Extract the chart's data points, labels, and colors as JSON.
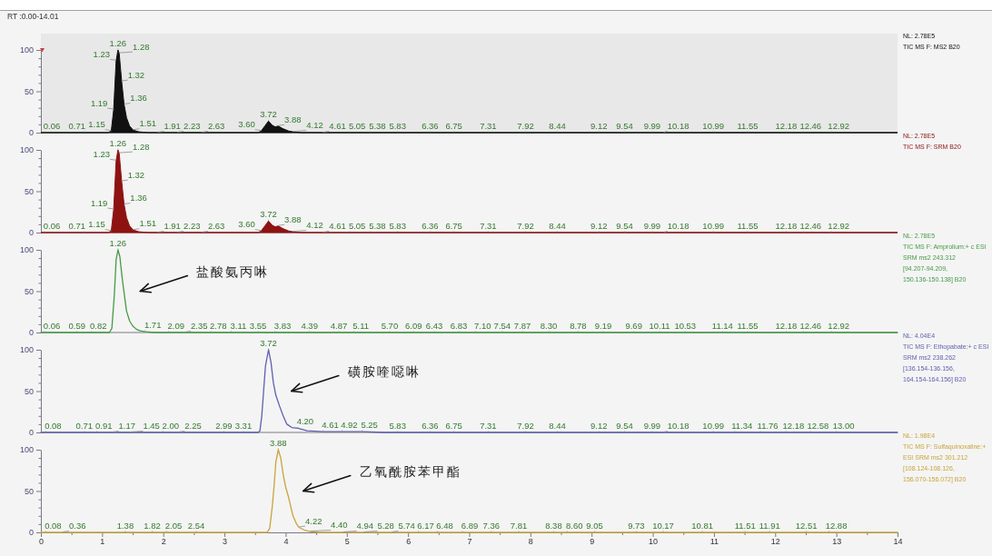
{
  "chart_data": [
    {
      "type": "area",
      "title": "RT :0.00-14.01",
      "x": [
        0,
        1.1,
        1.15,
        1.19,
        1.23,
        1.26,
        1.28,
        1.32,
        1.36,
        1.4,
        1.45,
        1.51,
        1.6,
        1.75,
        3.55,
        3.6,
        3.66,
        3.72,
        3.78,
        3.83,
        3.88,
        3.95,
        4.05,
        4.12,
        4.25,
        14
      ],
      "series": [
        {
          "color": "#111111",
          "values": [
            0,
            0,
            2,
            28,
            87,
            100,
            96,
            62,
            34,
            18,
            8,
            3,
            1,
            0,
            0,
            2,
            8,
            14,
            9,
            7,
            8,
            5,
            2,
            1,
            0,
            0
          ]
        }
      ],
      "xlim": [
        0,
        14
      ],
      "ylim": [
        0,
        100
      ],
      "yticks": [
        0,
        {
          "value": 10,
          "label": null
        },
        {
          "value": 20,
          "label": null
        },
        {
          "value": 30,
          "label": null
        },
        {
          "value": 40,
          "label": null
        },
        50,
        {
          "value": 60,
          "label": null
        },
        {
          "value": 70,
          "label": null
        },
        {
          "value": 80,
          "label": null
        },
        {
          "value": 90,
          "label": null
        },
        100
      ],
      "tick_labels": "y",
      "annotations": [
        "NL: 2.78E5",
        "TIC MS F: MS2 B20",
        {
          "text": "0.06",
          "x": 0.06,
          "y": 0
        },
        {
          "text": "0.71",
          "x": 0.71,
          "y": 0
        },
        {
          "text": "1.15",
          "x": 1.15,
          "y": 2
        },
        {
          "text": "1.19",
          "x": 1.19,
          "y": 28
        },
        {
          "text": "1.23",
          "x": 1.23,
          "y": 87
        },
        {
          "text": "1.26",
          "x": 1.26,
          "y": 100
        },
        {
          "text": "1.28",
          "x": 1.28,
          "y": 96
        },
        {
          "text": "1.32",
          "x": 1.32,
          "y": 62
        },
        {
          "text": "1.36",
          "x": 1.36,
          "y": 34
        },
        {
          "text": "1.51",
          "x": 1.51,
          "y": 3
        },
        {
          "text": "1.91",
          "x": 1.91,
          "y": 0
        },
        {
          "text": "2.23",
          "x": 2.23,
          "y": 0
        },
        {
          "text": "2.63",
          "x": 2.63,
          "y": 0
        },
        {
          "text": "3.60",
          "x": 3.6,
          "y": 2
        },
        {
          "text": "3.72",
          "x": 3.72,
          "y": 14
        },
        {
          "text": "3.88",
          "x": 3.88,
          "y": 8
        },
        {
          "text": "4.12",
          "x": 4.12,
          "y": 1
        },
        {
          "text": "4.61",
          "x": 4.61,
          "y": 0
        },
        {
          "text": "5.05",
          "x": 5.05,
          "y": 0
        },
        {
          "text": "5.38",
          "x": 5.38,
          "y": 0
        },
        {
          "text": "5.83",
          "x": 5.83,
          "y": 0
        },
        {
          "text": "6.36",
          "x": 6.36,
          "y": 0
        },
        {
          "text": "6.75",
          "x": 6.75,
          "y": 0
        },
        {
          "text": "7.31",
          "x": 7.31,
          "y": 0
        },
        {
          "text": "7.92",
          "x": 7.92,
          "y": 0
        },
        {
          "text": "8.44",
          "x": 8.44,
          "y": 0
        },
        {
          "text": "9.12",
          "x": 9.12,
          "y": 0
        },
        {
          "text": "9.54",
          "x": 9.54,
          "y": 0
        },
        {
          "text": "9.99",
          "x": 9.99,
          "y": 0
        },
        {
          "text": "10.18",
          "x": 10.18,
          "y": 0
        },
        {
          "text": "10.99",
          "x": 10.99,
          "y": 0
        },
        {
          "text": "11.55",
          "x": 11.55,
          "y": 0
        },
        {
          "text": "12.18",
          "x": 12.18,
          "y": 0
        },
        {
          "text": "12.46",
          "x": 12.46,
          "y": 0
        },
        {
          "text": "12.92",
          "x": 12.92,
          "y": 0
        }
      ]
    },
    {
      "type": "area",
      "x": [
        0,
        1.1,
        1.15,
        1.19,
        1.23,
        1.26,
        1.28,
        1.32,
        1.36,
        1.4,
        1.45,
        1.51,
        1.6,
        1.75,
        3.55,
        3.6,
        3.66,
        3.72,
        3.78,
        3.83,
        3.88,
        3.95,
        4.05,
        4.12,
        4.25,
        14
      ],
      "series": [
        {
          "color": "#8e1212",
          "values": [
            0,
            0,
            2,
            28,
            87,
            100,
            96,
            62,
            34,
            18,
            8,
            3,
            1,
            0,
            0,
            2,
            8,
            14,
            9,
            7,
            8,
            5,
            2,
            1,
            0,
            0
          ]
        }
      ],
      "xlim": [
        0,
        14
      ],
      "ylim": [
        0,
        100
      ],
      "yticks": [
        0,
        {
          "value": 10,
          "label": null
        },
        {
          "value": 20,
          "label": null
        },
        {
          "value": 30,
          "label": null
        },
        {
          "value": 40,
          "label": null
        },
        50,
        {
          "value": 60,
          "label": null
        },
        {
          "value": 70,
          "label": null
        },
        {
          "value": 80,
          "label": null
        },
        {
          "value": 90,
          "label": null
        },
        100
      ],
      "tick_labels": "y",
      "annotations": [
        "NL: 2.78E5",
        "TIC MS F: SRM B20",
        {
          "text": "0.06",
          "x": 0.06,
          "y": 0
        },
        {
          "text": "0.71",
          "x": 0.71,
          "y": 0
        },
        {
          "text": "1.15",
          "x": 1.15,
          "y": 2
        },
        {
          "text": "1.19",
          "x": 1.19,
          "y": 28
        },
        {
          "text": "1.23",
          "x": 1.23,
          "y": 87
        },
        {
          "text": "1.26",
          "x": 1.26,
          "y": 100
        },
        {
          "text": "1.28",
          "x": 1.28,
          "y": 96
        },
        {
          "text": "1.32",
          "x": 1.32,
          "y": 62
        },
        {
          "text": "1.36",
          "x": 1.36,
          "y": 34
        },
        {
          "text": "1.51",
          "x": 1.51,
          "y": 3
        },
        {
          "text": "1.91",
          "x": 1.91,
          "y": 0
        },
        {
          "text": "2.23",
          "x": 2.23,
          "y": 0
        },
        {
          "text": "2.63",
          "x": 2.63,
          "y": 0
        },
        {
          "text": "3.60",
          "x": 3.6,
          "y": 2
        },
        {
          "text": "3.72",
          "x": 3.72,
          "y": 14
        },
        {
          "text": "3.88",
          "x": 3.88,
          "y": 8
        },
        {
          "text": "4.12",
          "x": 4.12,
          "y": 1
        },
        {
          "text": "4.61",
          "x": 4.61,
          "y": 0
        },
        {
          "text": "5.05",
          "x": 5.05,
          "y": 0
        },
        {
          "text": "5.38",
          "x": 5.38,
          "y": 0
        },
        {
          "text": "5.83",
          "x": 5.83,
          "y": 0
        },
        {
          "text": "6.36",
          "x": 6.36,
          "y": 0
        },
        {
          "text": "6.75",
          "x": 6.75,
          "y": 0
        },
        {
          "text": "7.31",
          "x": 7.31,
          "y": 0
        },
        {
          "text": "7.92",
          "x": 7.92,
          "y": 0
        },
        {
          "text": "8.44",
          "x": 8.44,
          "y": 0
        },
        {
          "text": "9.12",
          "x": 9.12,
          "y": 0
        },
        {
          "text": "9.54",
          "x": 9.54,
          "y": 0
        },
        {
          "text": "9.99",
          "x": 9.99,
          "y": 0
        },
        {
          "text": "10.18",
          "x": 10.18,
          "y": 0
        },
        {
          "text": "10.99",
          "x": 10.99,
          "y": 0
        },
        {
          "text": "11.55",
          "x": 11.55,
          "y": 0
        },
        {
          "text": "12.18",
          "x": 12.18,
          "y": 0
        },
        {
          "text": "12.46",
          "x": 12.46,
          "y": 0
        },
        {
          "text": "12.92",
          "x": 12.92,
          "y": 0
        }
      ]
    },
    {
      "type": "line",
      "x": [
        0,
        1.12,
        1.16,
        1.2,
        1.23,
        1.26,
        1.29,
        1.33,
        1.36,
        1.4,
        1.45,
        1.5,
        1.56,
        1.62,
        1.71,
        1.85,
        14
      ],
      "series": [
        {
          "name": "盐酸氨丙啉",
          "color": "#459a45",
          "values": [
            0,
            0,
            5,
            45,
            88,
            100,
            92,
            65,
            48,
            26,
            14,
            8,
            4,
            2,
            1,
            0,
            0
          ]
        }
      ],
      "xlim": [
        0,
        14
      ],
      "ylim": [
        0,
        100
      ],
      "yticks": [
        0,
        {
          "value": 10,
          "label": null
        },
        {
          "value": 20,
          "label": null
        },
        {
          "value": 30,
          "label": null
        },
        {
          "value": 40,
          "label": null
        },
        50,
        {
          "value": 60,
          "label": null
        },
        {
          "value": 70,
          "label": null
        },
        {
          "value": 80,
          "label": null
        },
        {
          "value": 90,
          "label": null
        },
        100
      ],
      "tick_labels": "y",
      "annotations": [
        "NL: 2.78E5",
        "TIC MS F: Amprolium:+ c ESI",
        "SRM ms2 243.312",
        "[94.207-94.209,",
        "150.136-150.138] B20",
        {
          "text": "0.06",
          "x": 0.06,
          "y": 0
        },
        {
          "text": "0.59",
          "x": 0.59,
          "y": 0
        },
        {
          "text": "0.82",
          "x": 0.82,
          "y": 0
        },
        {
          "text": "1.26",
          "x": 1.26,
          "y": 100
        },
        {
          "text": "1.71",
          "x": 1.71,
          "y": 1
        },
        {
          "text": "2.09",
          "x": 2.09,
          "y": 0
        },
        {
          "text": "2.35",
          "x": 2.35,
          "y": 0
        },
        {
          "text": "2.78",
          "x": 2.78,
          "y": 0
        },
        {
          "text": "3.11",
          "x": 3.11,
          "y": 0
        },
        {
          "text": "3.55",
          "x": 3.55,
          "y": 0
        },
        {
          "text": "3.83",
          "x": 3.83,
          "y": 0
        },
        {
          "text": "4.39",
          "x": 4.39,
          "y": 0
        },
        {
          "text": "4.87",
          "x": 4.87,
          "y": 0
        },
        {
          "text": "5.11",
          "x": 5.11,
          "y": 0
        },
        {
          "text": "5.70",
          "x": 5.7,
          "y": 0
        },
        {
          "text": "6.09",
          "x": 6.09,
          "y": 0
        },
        {
          "text": "6.43",
          "x": 6.43,
          "y": 0
        },
        {
          "text": "6.83",
          "x": 6.83,
          "y": 0
        },
        {
          "text": "7.10",
          "x": 7.1,
          "y": 0
        },
        {
          "text": "7.54",
          "x": 7.54,
          "y": 0
        },
        {
          "text": "7.87",
          "x": 7.87,
          "y": 0
        },
        {
          "text": "8.30",
          "x": 8.3,
          "y": 0
        },
        {
          "text": "8.78",
          "x": 8.78,
          "y": 0
        },
        {
          "text": "9.19",
          "x": 9.19,
          "y": 0
        },
        {
          "text": "9.69",
          "x": 9.69,
          "y": 0
        },
        {
          "text": "10.11",
          "x": 10.11,
          "y": 0
        },
        {
          "text": "10.53",
          "x": 10.53,
          "y": 0
        },
        {
          "text": "11.14",
          "x": 11.14,
          "y": 0
        },
        {
          "text": "11.55",
          "x": 11.55,
          "y": 0
        },
        {
          "text": "12.18",
          "x": 12.18,
          "y": 0
        },
        {
          "text": "12.46",
          "x": 12.46,
          "y": 0
        },
        {
          "text": "12.92",
          "x": 12.92,
          "y": 0
        }
      ]
    },
    {
      "type": "line",
      "x": [
        0,
        3.55,
        3.58,
        3.61,
        3.64,
        3.67,
        3.72,
        3.76,
        3.8,
        3.84,
        3.9,
        3.96,
        4.02,
        4.1,
        4.2,
        4.35,
        4.61,
        5.25,
        5.6,
        14
      ],
      "series": [
        {
          "name": "磺胺喹噁啉",
          "color": "#5f5fb0",
          "values": [
            0,
            0,
            2,
            20,
            50,
            80,
            100,
            85,
            60,
            45,
            32,
            20,
            10,
            6,
            5,
            2,
            1,
            1,
            0,
            0
          ]
        }
      ],
      "xlim": [
        0,
        14
      ],
      "ylim": [
        0,
        100
      ],
      "yticks": [
        0,
        {
          "value": 10,
          "label": null
        },
        {
          "value": 20,
          "label": null
        },
        {
          "value": 30,
          "label": null
        },
        {
          "value": 40,
          "label": null
        },
        50,
        {
          "value": 60,
          "label": null
        },
        {
          "value": 70,
          "label": null
        },
        {
          "value": 80,
          "label": null
        },
        {
          "value": 90,
          "label": null
        },
        100
      ],
      "tick_labels": "y",
      "annotations": [
        "NL: 4.04E4",
        "TIC MS F: Ethopabate:+ c ESI",
        "SRM ms2 238.262",
        "[136.154-136.156,",
        "164.154-164.156] B20",
        {
          "text": "0.08",
          "x": 0.08,
          "y": 0
        },
        {
          "text": "0.71",
          "x": 0.71,
          "y": 0
        },
        {
          "text": "0.91",
          "x": 0.91,
          "y": 0
        },
        {
          "text": "1.17",
          "x": 1.17,
          "y": 0
        },
        {
          "text": "1.45",
          "x": 1.45,
          "y": 0
        },
        {
          "text": "2.00",
          "x": 2,
          "y": 0
        },
        {
          "text": "2.25",
          "x": 2.25,
          "y": 0
        },
        {
          "text": "2.99",
          "x": 2.99,
          "y": 0
        },
        {
          "text": "3.31",
          "x": 3.31,
          "y": 0
        },
        {
          "text": "3.72",
          "x": 3.72,
          "y": 100
        },
        {
          "text": "4.20",
          "x": 4.2,
          "y": 5
        },
        {
          "text": "4.61",
          "x": 4.61,
          "y": 1
        },
        {
          "text": "4.92",
          "x": 4.92,
          "y": 1
        },
        {
          "text": "5.25",
          "x": 5.25,
          "y": 1
        },
        {
          "text": "5.83",
          "x": 5.83,
          "y": 0
        },
        {
          "text": "6.36",
          "x": 6.36,
          "y": 0
        },
        {
          "text": "6.75",
          "x": 6.75,
          "y": 0
        },
        {
          "text": "7.31",
          "x": 7.31,
          "y": 0
        },
        {
          "text": "7.92",
          "x": 7.92,
          "y": 0
        },
        {
          "text": "8.44",
          "x": 8.44,
          "y": 0
        },
        {
          "text": "9.12",
          "x": 9.12,
          "y": 0
        },
        {
          "text": "9.54",
          "x": 9.54,
          "y": 0
        },
        {
          "text": "9.99",
          "x": 9.99,
          "y": 0
        },
        {
          "text": "10.18",
          "x": 10.18,
          "y": 0
        },
        {
          "text": "10.99",
          "x": 10.99,
          "y": 0
        },
        {
          "text": "11.34",
          "x": 11.34,
          "y": 0
        },
        {
          "text": "11.76",
          "x": 11.76,
          "y": 0
        },
        {
          "text": "12.18",
          "x": 12.18,
          "y": 0
        },
        {
          "text": "12.58",
          "x": 12.58,
          "y": 0
        },
        {
          "text": "13.00",
          "x": 13,
          "y": 0
        }
      ]
    },
    {
      "type": "line",
      "x": [
        0,
        3.7,
        3.74,
        3.78,
        3.81,
        3.84,
        3.88,
        3.92,
        3.96,
        4.0,
        4.05,
        4.12,
        4.18,
        4.22,
        4.3,
        4.4,
        4.55,
        14
      ],
      "series": [
        {
          "name": "乙氧酰胺苯甲酯",
          "color": "#c9a43a",
          "values": [
            0,
            0,
            5,
            30,
            55,
            85,
            100,
            90,
            70,
            55,
            42,
            20,
            10,
            6,
            3,
            1,
            0,
            0
          ]
        }
      ],
      "xlim": [
        0,
        14
      ],
      "ylim": [
        0,
        100
      ],
      "yticks": [
        0,
        {
          "value": 10,
          "label": null
        },
        {
          "value": 20,
          "label": null
        },
        {
          "value": 30,
          "label": null
        },
        {
          "value": 40,
          "label": null
        },
        50,
        {
          "value": 60,
          "label": null
        },
        {
          "value": 70,
          "label": null
        },
        {
          "value": 80,
          "label": null
        },
        {
          "value": 90,
          "label": null
        },
        100
      ],
      "xticks": [
        0,
        {
          "value": 0.5,
          "label": null
        },
        1,
        {
          "value": 1.5,
          "label": null
        },
        2,
        {
          "value": 2.5,
          "label": null
        },
        3,
        {
          "value": 3.5,
          "label": null
        },
        4,
        {
          "value": 4.5,
          "label": null
        },
        5,
        {
          "value": 5.5,
          "label": null
        },
        6,
        {
          "value": 6.5,
          "label": null
        },
        7,
        {
          "value": 7.5,
          "label": null
        },
        8,
        {
          "value": 8.5,
          "label": null
        },
        9,
        {
          "value": 9.5,
          "label": null
        },
        10,
        {
          "value": 10.5,
          "label": null
        },
        11,
        {
          "value": 11.5,
          "label": null
        },
        12,
        {
          "value": 12.5,
          "label": null
        },
        13,
        {
          "value": 13.5,
          "label": null
        },
        14
      ],
      "annotations": [
        "NL: 1.98E4",
        "TIC MS F: Sulfaquinoxaline:+",
        "ESI SRM ms2 301.212",
        "[108.124-108.126,",
        "156.070-156.072] B20",
        {
          "text": "0.08",
          "x": 0.08,
          "y": 0
        },
        {
          "text": "0.36",
          "x": 0.36,
          "y": 0
        },
        {
          "text": "1.38",
          "x": 1.38,
          "y": 0
        },
        {
          "text": "1.82",
          "x": 1.82,
          "y": 0
        },
        {
          "text": "2.05",
          "x": 2.05,
          "y": 0
        },
        {
          "text": "2.54",
          "x": 2.54,
          "y": 0
        },
        {
          "text": "3.88",
          "x": 3.88,
          "y": 100
        },
        {
          "text": "4.22",
          "x": 4.22,
          "y": 6
        },
        {
          "text": "4.40",
          "x": 4.4,
          "y": 1
        },
        {
          "text": "4.94",
          "x": 4.94,
          "y": 0
        },
        {
          "text": "5.28",
          "x": 5.28,
          "y": 0
        },
        {
          "text": "5.74",
          "x": 5.74,
          "y": 0
        },
        {
          "text": "6.17",
          "x": 6.17,
          "y": 0
        },
        {
          "text": "6.48",
          "x": 6.48,
          "y": 0
        },
        {
          "text": "6.89",
          "x": 6.89,
          "y": 0
        },
        {
          "text": "7.36",
          "x": 7.36,
          "y": 0
        },
        {
          "text": "7.81",
          "x": 7.81,
          "y": 0
        },
        {
          "text": "8.38",
          "x": 8.38,
          "y": 0
        },
        {
          "text": "8.60",
          "x": 8.6,
          "y": 0
        },
        {
          "text": "9.05",
          "x": 9.05,
          "y": 0
        },
        {
          "text": "9.73",
          "x": 9.73,
          "y": 0
        },
        {
          "text": "10.17",
          "x": 10.17,
          "y": 0
        },
        {
          "text": "10.81",
          "x": 10.81,
          "y": 0
        },
        {
          "text": "11.51",
          "x": 11.51,
          "y": 0
        },
        {
          "text": "11.91",
          "x": 11.91,
          "y": 0
        },
        {
          "text": "12.51",
          "x": 12.51,
          "y": 0
        },
        {
          "text": "12.88",
          "x": 12.88,
          "y": 0
        }
      ]
    }
  ]
}
